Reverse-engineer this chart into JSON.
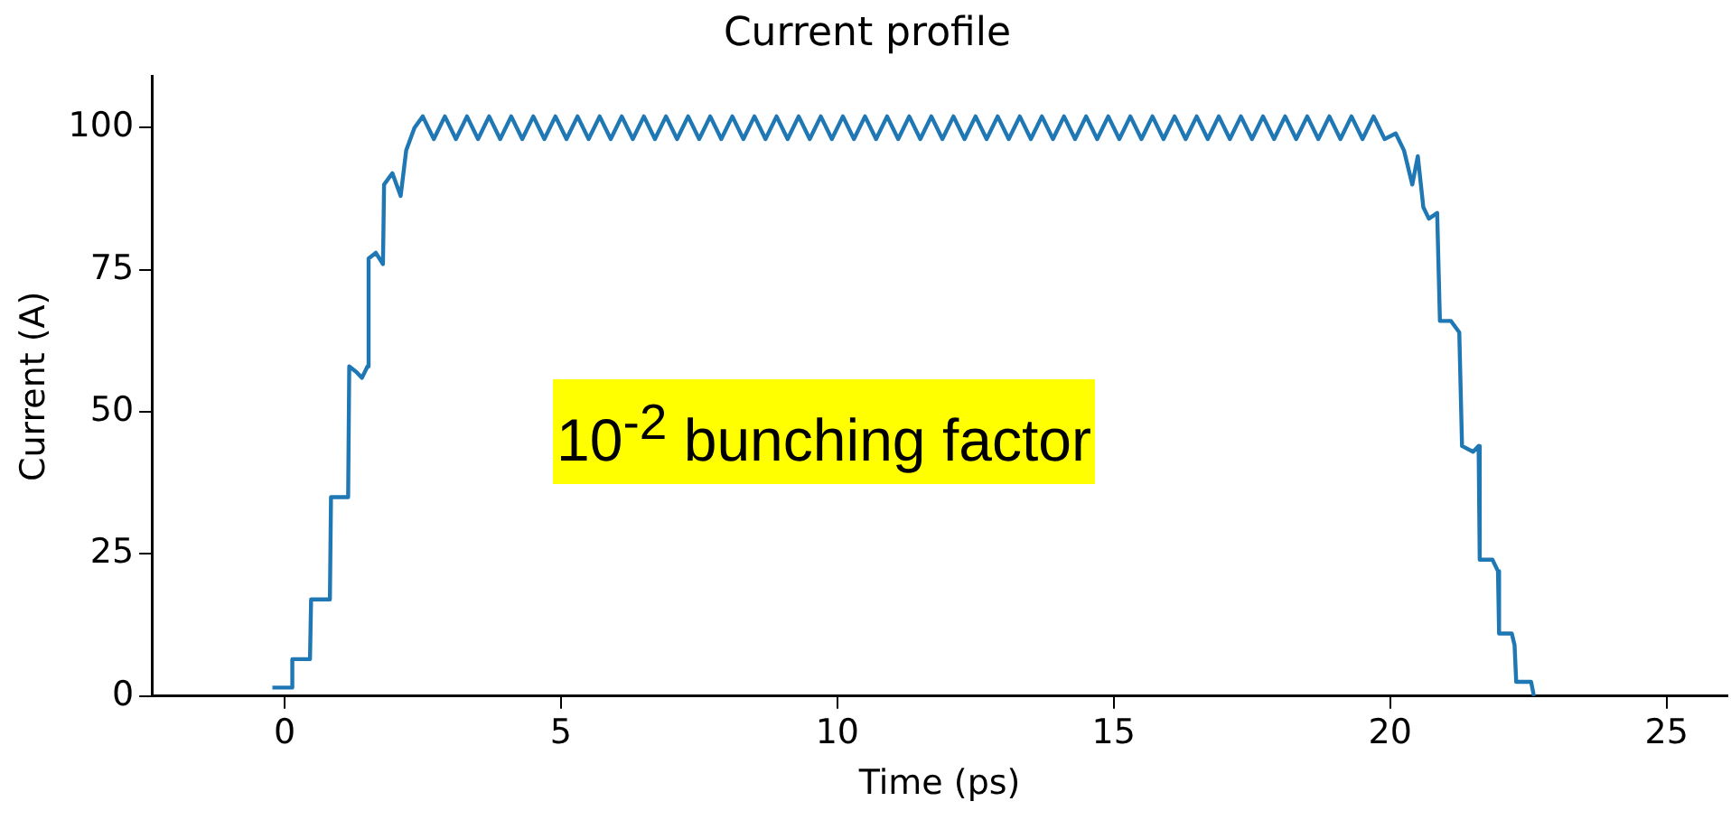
{
  "chart_data": {
    "type": "line",
    "title": "Current profile",
    "xlabel": "Time (ps)",
    "ylabel": "Current (A)",
    "annotations": [
      "10$^{-2}$ bunching factor"
    ],
    "xlim": [
      -2.4,
      26.1
    ],
    "xticks": [
      0,
      5,
      10,
      15,
      20,
      25
    ],
    "ylim": [
      0,
      109
    ],
    "yticks": [
      0,
      25,
      50,
      75,
      100
    ],
    "grid": false,
    "legend": false,
    "series": [
      {
        "color": "#1f77b4",
        "x": [
          -0.22,
          0.12,
          0.14,
          0.46,
          0.48,
          0.82,
          0.84,
          1.15,
          1.17,
          1.3,
          1.4,
          1.5,
          1.52,
          1.65,
          1.78,
          1.8,
          1.95,
          2.1,
          2.2,
          2.35,
          2.5,
          2.7,
          2.9,
          3.1,
          3.3,
          3.5,
          3.7,
          3.9,
          4.1,
          4.3,
          4.5,
          4.7,
          4.9,
          5.1,
          5.3,
          5.5,
          5.7,
          5.9,
          6.1,
          6.3,
          6.5,
          6.7,
          6.9,
          7.1,
          7.3,
          7.5,
          7.7,
          7.9,
          8.1,
          8.3,
          8.5,
          8.7,
          8.9,
          9.1,
          9.3,
          9.5,
          9.7,
          9.9,
          10.1,
          10.3,
          10.5,
          10.7,
          10.9,
          11.1,
          11.3,
          11.5,
          11.7,
          11.9,
          12.1,
          12.3,
          12.5,
          12.7,
          12.9,
          13.1,
          13.3,
          13.5,
          13.7,
          13.9,
          14.1,
          14.3,
          14.5,
          14.7,
          14.9,
          15.1,
          15.3,
          15.5,
          15.7,
          15.9,
          16.1,
          16.3,
          16.5,
          16.7,
          16.9,
          17.1,
          17.3,
          17.5,
          17.7,
          17.9,
          18.1,
          18.3,
          18.5,
          18.7,
          18.9,
          19.1,
          19.3,
          19.5,
          19.7,
          19.9,
          20.1,
          20.25,
          20.4,
          20.5,
          20.6,
          20.7,
          20.85,
          20.9,
          21.1,
          21.25,
          21.3,
          21.5,
          21.6,
          21.62,
          21.85,
          21.95,
          21.97,
          22.2,
          22.25,
          22.28,
          22.55,
          22.6
        ],
        "values": [
          1.5,
          1.5,
          6.5,
          6.5,
          17,
          17,
          35,
          35,
          58,
          57,
          56,
          58,
          77,
          78,
          76,
          90,
          92,
          88,
          96,
          100,
          102,
          98,
          102,
          98,
          102,
          98,
          102,
          98,
          102,
          98,
          102,
          98,
          102,
          98,
          102,
          98,
          102,
          98,
          102,
          98,
          102,
          98,
          102,
          98,
          102,
          98,
          102,
          98,
          102,
          98,
          102,
          98,
          102,
          98,
          102,
          98,
          102,
          98,
          102,
          98,
          102,
          98,
          102,
          98,
          102,
          98,
          102,
          98,
          102,
          98,
          102,
          98,
          102,
          98,
          102,
          98,
          102,
          98,
          102,
          98,
          102,
          98,
          102,
          98,
          102,
          98,
          102,
          98,
          102,
          98,
          102,
          98,
          102,
          98,
          102,
          98,
          102,
          98,
          102,
          98,
          102,
          98,
          102,
          98,
          102,
          98,
          102,
          98,
          99,
          96,
          90,
          95,
          86,
          84,
          85,
          66,
          66,
          64,
          44,
          43,
          44,
          24,
          24,
          22,
          11,
          11,
          9,
          2.5,
          2.5,
          0
        ]
      }
    ]
  }
}
